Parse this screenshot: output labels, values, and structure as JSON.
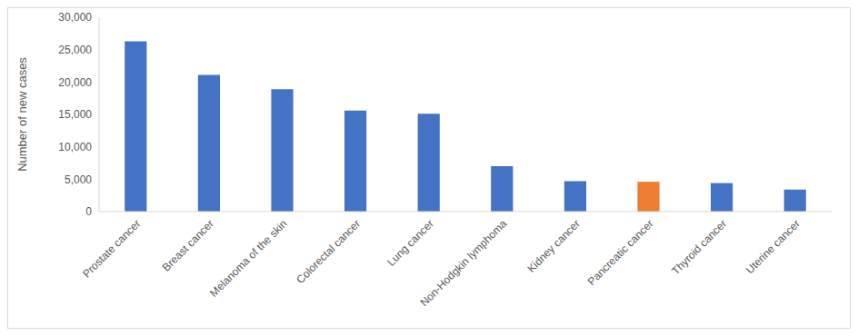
{
  "chart_data": {
    "type": "bar",
    "y_label": "Number of new cases",
    "categories": [
      "Prostate cancer",
      "Breast cancer",
      "Melanoma of the skin",
      "Colorectal cancer",
      "Lung cancer",
      "Non-Hodgkin lymphoma",
      "Kidney cancer",
      "Pancreatic cancer",
      "Thyroid cancer",
      "Uterine cancer"
    ],
    "values": [
      26300,
      21100,
      18900,
      15600,
      15100,
      7000,
      4700,
      4600,
      4400,
      3400
    ],
    "colors": [
      "#4472c4",
      "#4472c4",
      "#4472c4",
      "#4472c4",
      "#4472c4",
      "#4472c4",
      "#4472c4",
      "#ed7d31",
      "#4472c4",
      "#4472c4"
    ],
    "ylim": [
      0,
      30000
    ],
    "yticks": [
      0,
      {
        "value": 5000,
        "label": "5,000"
      },
      {
        "value": 10000,
        "label": "10,000"
      },
      {
        "value": 15000,
        "label": "15,000"
      },
      {
        "value": 20000,
        "label": "20,000"
      },
      {
        "value": 25000,
        "label": "25,000"
      },
      {
        "value": 30000,
        "label": "30,000"
      }
    ],
    "grid": false
  }
}
